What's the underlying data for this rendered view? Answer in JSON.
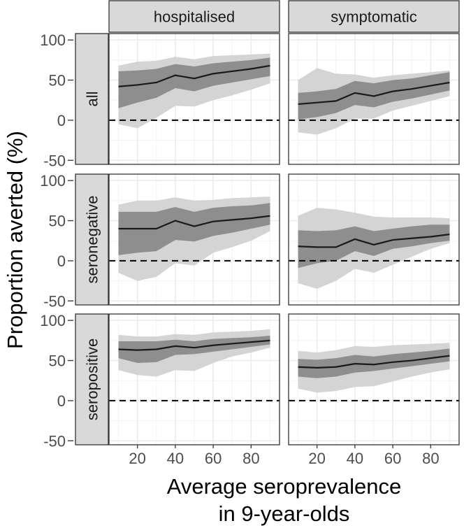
{
  "chart_data": {
    "type": "line",
    "xlabel_lines": [
      "Average seroprevalence",
      "in 9-year-olds"
    ],
    "ylabel": "Proportion averted (%)",
    "x_ticks": [
      20,
      40,
      60,
      80
    ],
    "y_ticks": [
      -50,
      0,
      50,
      100
    ],
    "xlim": [
      5,
      95
    ],
    "ylim": [
      -55,
      108
    ],
    "reference_line": 0,
    "column_facets": [
      "hospitalised",
      "symptomatic"
    ],
    "row_facets": [
      "all",
      "seronegative",
      "seropositive"
    ],
    "x": [
      10,
      20,
      30,
      40,
      50,
      60,
      70,
      80,
      90
    ],
    "panels": [
      {
        "row": "all",
        "column": "hospitalised",
        "median": [
          42,
          44,
          47,
          56,
          52,
          58,
          61,
          64,
          68
        ],
        "inner_band": {
          "lower": [
            15,
            22,
            28,
            40,
            36,
            43,
            47,
            51,
            55
          ],
          "upper": [
            61,
            62,
            64,
            70,
            67,
            71,
            73,
            75,
            78
          ]
        },
        "outer_band": {
          "lower": [
            -5,
            -10,
            3,
            18,
            17,
            25,
            31,
            38,
            46
          ],
          "upper": [
            68,
            73,
            74,
            79,
            76,
            80,
            81,
            82,
            83
          ]
        }
      },
      {
        "row": "all",
        "column": "symptomatic",
        "median": [
          20,
          22,
          24,
          34,
          30,
          36,
          39,
          43,
          47
        ],
        "inner_band": {
          "lower": [
            1,
            4,
            9,
            19,
            16,
            23,
            27,
            32,
            37
          ],
          "upper": [
            34,
            36,
            39,
            49,
            46,
            50,
            52,
            56,
            60
          ]
        },
        "outer_band": {
          "lower": [
            -15,
            -18,
            -10,
            2,
            2,
            12,
            18,
            24,
            30
          ],
          "upper": [
            50,
            65,
            58,
            57,
            53,
            56,
            58,
            60,
            62
          ]
        }
      },
      {
        "row": "seronegative",
        "column": "hospitalised",
        "median": [
          40,
          40,
          40,
          50,
          43,
          49,
          51,
          53,
          56
        ],
        "inner_band": {
          "lower": [
            7,
            10,
            12,
            26,
            24,
            31,
            35,
            40,
            45
          ],
          "upper": [
            61,
            61,
            61,
            67,
            61,
            66,
            68,
            69,
            72
          ]
        },
        "outer_band": {
          "lower": [
            -15,
            -25,
            -20,
            -3,
            -6,
            10,
            17,
            25,
            37
          ],
          "upper": [
            70,
            75,
            75,
            79,
            75,
            76,
            78,
            79,
            80
          ]
        }
      },
      {
        "row": "seronegative",
        "column": "symptomatic",
        "median": [
          18,
          17,
          17,
          27,
          20,
          26,
          28,
          30,
          33
        ],
        "inner_band": {
          "lower": [
            -9,
            -3,
            0,
            12,
            6,
            15,
            18,
            22,
            25
          ],
          "upper": [
            38,
            37,
            38,
            43,
            37,
            40,
            43,
            45,
            45
          ]
        },
        "outer_band": {
          "lower": [
            -28,
            -35,
            -25,
            -10,
            -15,
            -5,
            5,
            15,
            22
          ],
          "upper": [
            56,
            66,
            64,
            60,
            55,
            54,
            54,
            54,
            53
          ]
        }
      },
      {
        "row": "seropositive",
        "column": "hospitalised",
        "median": [
          64,
          63,
          64,
          68,
          66,
          69,
          71,
          73,
          75
        ],
        "inner_band": {
          "lower": [
            53,
            47,
            48,
            57,
            58,
            61,
            64,
            67,
            70
          ],
          "upper": [
            74,
            74,
            74,
            76,
            74,
            77,
            78,
            79,
            81
          ]
        },
        "outer_band": {
          "lower": [
            38,
            32,
            30,
            38,
            37,
            47,
            55,
            60,
            66
          ],
          "upper": [
            82,
            80,
            80,
            83,
            82,
            85,
            86,
            87,
            89
          ]
        }
      },
      {
        "row": "seropositive",
        "column": "symptomatic",
        "median": [
          42,
          41,
          42,
          46,
          45,
          48,
          50,
          53,
          56
        ],
        "inner_band": {
          "lower": [
            30,
            28,
            30,
            35,
            37,
            40,
            43,
            46,
            49
          ],
          "upper": [
            52,
            51,
            53,
            57,
            55,
            58,
            60,
            62,
            65
          ]
        },
        "outer_band": {
          "lower": [
            15,
            10,
            12,
            17,
            18,
            24,
            30,
            35,
            39
          ],
          "upper": [
            62,
            60,
            63,
            68,
            67,
            69,
            70,
            71,
            72
          ]
        }
      }
    ],
    "grid": true,
    "legend": "none"
  },
  "colors": {
    "outer_band": "#d4d4d4",
    "inner_band": "#8e8e8e",
    "median_line": "#1a1a1a",
    "reference_line": "#000000",
    "strip_fill": "#d9d9d9",
    "strip_border": "#333333",
    "panel_border": "#333333",
    "grid_major": "#ebebeb",
    "grid_minor": "#f3f3f3",
    "axis_text": "#4d4d4d",
    "title_text": "#000000",
    "strip_text": "#1a1a1a"
  }
}
